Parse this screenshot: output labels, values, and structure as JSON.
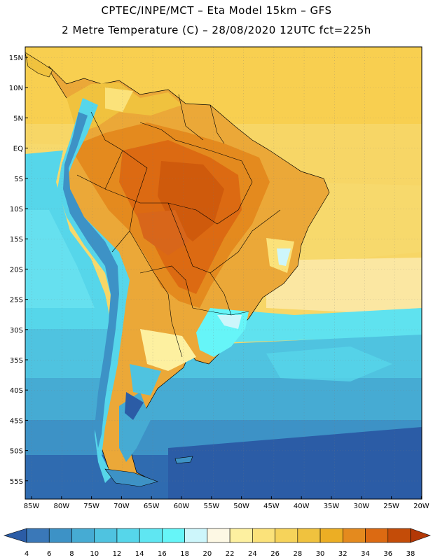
{
  "header": {
    "line1": "CPTEC/INPE/MCT –  Eta Model 15km – GFS",
    "line2": "2 Metre Temperature (C) – 28/08/2020 12UTC fct=225h"
  },
  "axes": {
    "lat_labels": [
      "15N",
      "10N",
      "5N",
      "EQ",
      "5S",
      "10S",
      "15S",
      "20S",
      "25S",
      "30S",
      "35S",
      "40S",
      "45S",
      "50S",
      "55S"
    ],
    "lon_labels": [
      "85W",
      "80W",
      "75W",
      "70W",
      "65W",
      "60W",
      "55W",
      "50W",
      "45W",
      "40W",
      "35W",
      "30W",
      "25W",
      "20W"
    ]
  },
  "colorbar": {
    "colors": [
      "#2b5ca6",
      "#3a78b8",
      "#3d92c6",
      "#46abd3",
      "#4fc3e0",
      "#56d6ea",
      "#5fe6f2",
      "#66f5f8",
      "#cdf6fb",
      "#fdf8e4",
      "#fdf0a0",
      "#fbe27a",
      "#f6d35a",
      "#f0c23e",
      "#ecae24",
      "#e48a1e",
      "#dc6a12",
      "#c44c08",
      "#b33806"
    ],
    "labels": [
      "4",
      "6",
      "8",
      "10",
      "12",
      "14",
      "16",
      "18",
      "20",
      "22",
      "24",
      "26",
      "28",
      "30",
      "32",
      "34",
      "36",
      "38"
    ]
  }
}
